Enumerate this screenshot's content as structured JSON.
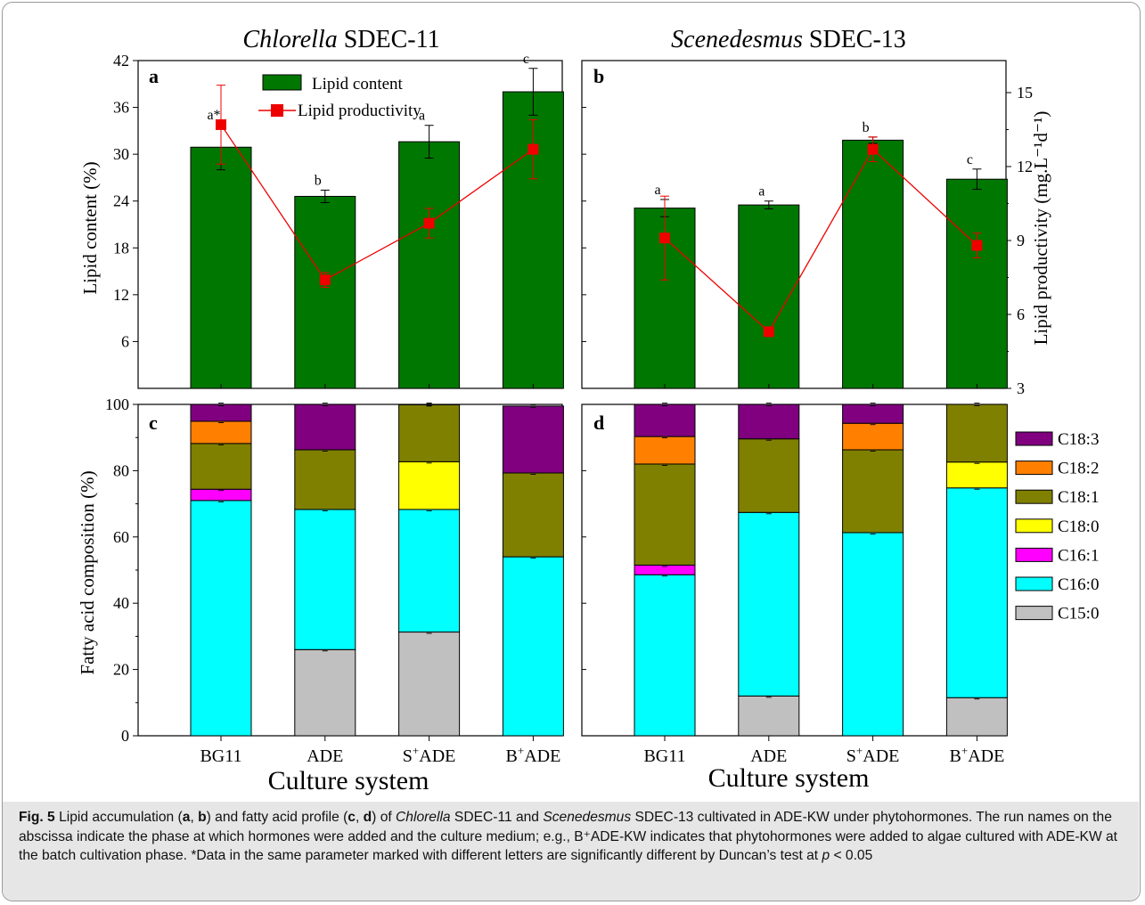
{
  "panel_titles": {
    "left": {
      "italic": "Chlorella",
      "rest": " SDEC-11"
    },
    "right": {
      "italic": "Scenedesmus",
      "rest": " SDEC-13"
    }
  },
  "axis_labels": {
    "lipid_content": "Lipid content (%)",
    "lipid_productivity": "Lipid productivity (mg.L⁻¹d⁻¹)",
    "fatty_acid": "Fatty acid composition (%)",
    "xlabel": "Culture system"
  },
  "categories": [
    "BG11",
    "ADE",
    "S⁺ADE",
    "B⁺ADE"
  ],
  "legend_top": {
    "bar": "Lipid content",
    "line": "Lipid productivity"
  },
  "fa_labels": [
    "C15:0",
    "C16:0",
    "C16:1",
    "C18:0",
    "C18:1",
    "C18:2",
    "C18:3"
  ],
  "colors": {
    "C15:0": "#c0c0c0",
    "C16:0": "#00ffff",
    "C16:1": "#ff00ff",
    "C18:0": "#ffff00",
    "C18:1": "#808000",
    "C18:2": "#ff8000",
    "C18:3": "#800080",
    "bar": "#007700",
    "line": "#ee0000"
  },
  "chart_data": [
    {
      "panel": "a",
      "type": "bar",
      "title": "Chlorella SDEC-11",
      "categories": [
        "BG11",
        "ADE",
        "S⁺ADE",
        "B⁺ADE"
      ],
      "ylabel": "Lipid content (%)",
      "ylim": [
        0,
        42
      ],
      "yticks": [
        6,
        12,
        18,
        24,
        30,
        36,
        42
      ],
      "series": [
        {
          "name": "Lipid content",
          "type": "bar",
          "values": [
            30.9,
            24.6,
            31.6,
            38.0
          ],
          "errors": [
            2.9,
            0.8,
            2.1,
            3.0
          ],
          "letters": [
            "a*",
            "b",
            "a",
            "c"
          ]
        },
        {
          "name": "Lipid productivity",
          "type": "line",
          "axis": "right",
          "values": [
            13.7,
            7.4,
            9.7,
            12.7
          ],
          "errors": [
            1.6,
            0.3,
            0.6,
            1.2
          ]
        }
      ],
      "y2lim": [
        3,
        16.3
      ]
    },
    {
      "panel": "b",
      "type": "bar",
      "title": "Scenedesmus SDEC-13",
      "categories": [
        "BG11",
        "ADE",
        "S⁺ADE",
        "B⁺ADE"
      ],
      "ylim": [
        0,
        42
      ],
      "series": [
        {
          "name": "Lipid content",
          "type": "bar",
          "values": [
            23.1,
            23.5,
            31.8,
            26.8
          ],
          "errors": [
            1.1,
            0.5,
            0.4,
            1.3
          ],
          "letters": [
            "a",
            "a",
            "b",
            "c"
          ]
        },
        {
          "name": "Lipid productivity",
          "type": "line",
          "axis": "right",
          "values": [
            9.1,
            5.3,
            12.7,
            8.8
          ],
          "errors": [
            1.7,
            0.1,
            0.5,
            0.5
          ]
        }
      ],
      "y2label": "Lipid productivity (mg.L⁻¹d⁻¹)",
      "y2lim": [
        3,
        16.3
      ],
      "y2ticks": [
        3,
        6,
        9,
        12,
        15
      ]
    },
    {
      "panel": "c",
      "type": "bar",
      "stacked": true,
      "categories": [
        "BG11",
        "ADE",
        "S⁺ADE",
        "B⁺ADE"
      ],
      "ylabel": "Fatty acid composition (%)",
      "xlabel": "Culture system",
      "ylim": [
        0,
        100
      ],
      "yticks": [
        0,
        20,
        40,
        60,
        80,
        100
      ],
      "series": [
        {
          "name": "C15:0",
          "values": [
            0,
            26.0,
            31.3,
            0
          ]
        },
        {
          "name": "C16:0",
          "values": [
            71.0,
            42.3,
            37.0,
            54.0
          ]
        },
        {
          "name": "C16:1",
          "values": [
            3.4,
            0,
            0,
            0
          ]
        },
        {
          "name": "C18:0",
          "values": [
            0,
            0,
            14.4,
            0
          ]
        },
        {
          "name": "C18:1",
          "values": [
            13.8,
            18.0,
            17.2,
            25.3
          ]
        },
        {
          "name": "C18:2",
          "values": [
            6.7,
            0,
            0,
            0
          ]
        },
        {
          "name": "C18:3",
          "values": [
            5.1,
            13.7,
            0.1,
            20.2
          ]
        }
      ]
    },
    {
      "panel": "d",
      "type": "bar",
      "stacked": true,
      "categories": [
        "BG11",
        "ADE",
        "S⁺ADE",
        "B⁺ADE"
      ],
      "xlabel": "Culture system",
      "ylim": [
        0,
        100
      ],
      "series": [
        {
          "name": "C15:0",
          "values": [
            0,
            12.0,
            0,
            11.5
          ]
        },
        {
          "name": "C16:0",
          "values": [
            48.6,
            55.4,
            61.3,
            63.3
          ]
        },
        {
          "name": "C16:1",
          "values": [
            2.9,
            0,
            0,
            0
          ]
        },
        {
          "name": "C18:0",
          "values": [
            0,
            0,
            0,
            7.8
          ]
        },
        {
          "name": "C18:1",
          "values": [
            30.5,
            22.2,
            25.0,
            17.4
          ]
        },
        {
          "name": "C18:2",
          "values": [
            8.3,
            0,
            8.0,
            0
          ]
        },
        {
          "name": "C18:3",
          "values": [
            9.7,
            10.4,
            5.7,
            0
          ]
        }
      ]
    }
  ],
  "caption": {
    "label": "Fig. 5",
    "t1": "  Lipid accumulation (",
    "a": "a",
    "comma1": ", ",
    "b": "b",
    "t2": ") and fatty acid profile (",
    "c": "c",
    "comma2": ", ",
    "d": "d",
    "t3": ") of ",
    "sp1": "Chlorella",
    "t4": " SDEC-11 and ",
    "sp2": "Scenedesmus",
    "t5": " SDEC-13 cultivated in ADE-KW under phytohormones. The run names on the abscissa indicate the phase at which hormones were added and the culture medium; e.g., B⁺ADE-KW indicates that phytohormones were added to algae cultured with ADE-KW at the batch cultivation phase. *Data in the same parameter marked with different letters are significantly different by Duncan’s test at ",
    "p": "p",
    "t6": " < 0.05"
  }
}
